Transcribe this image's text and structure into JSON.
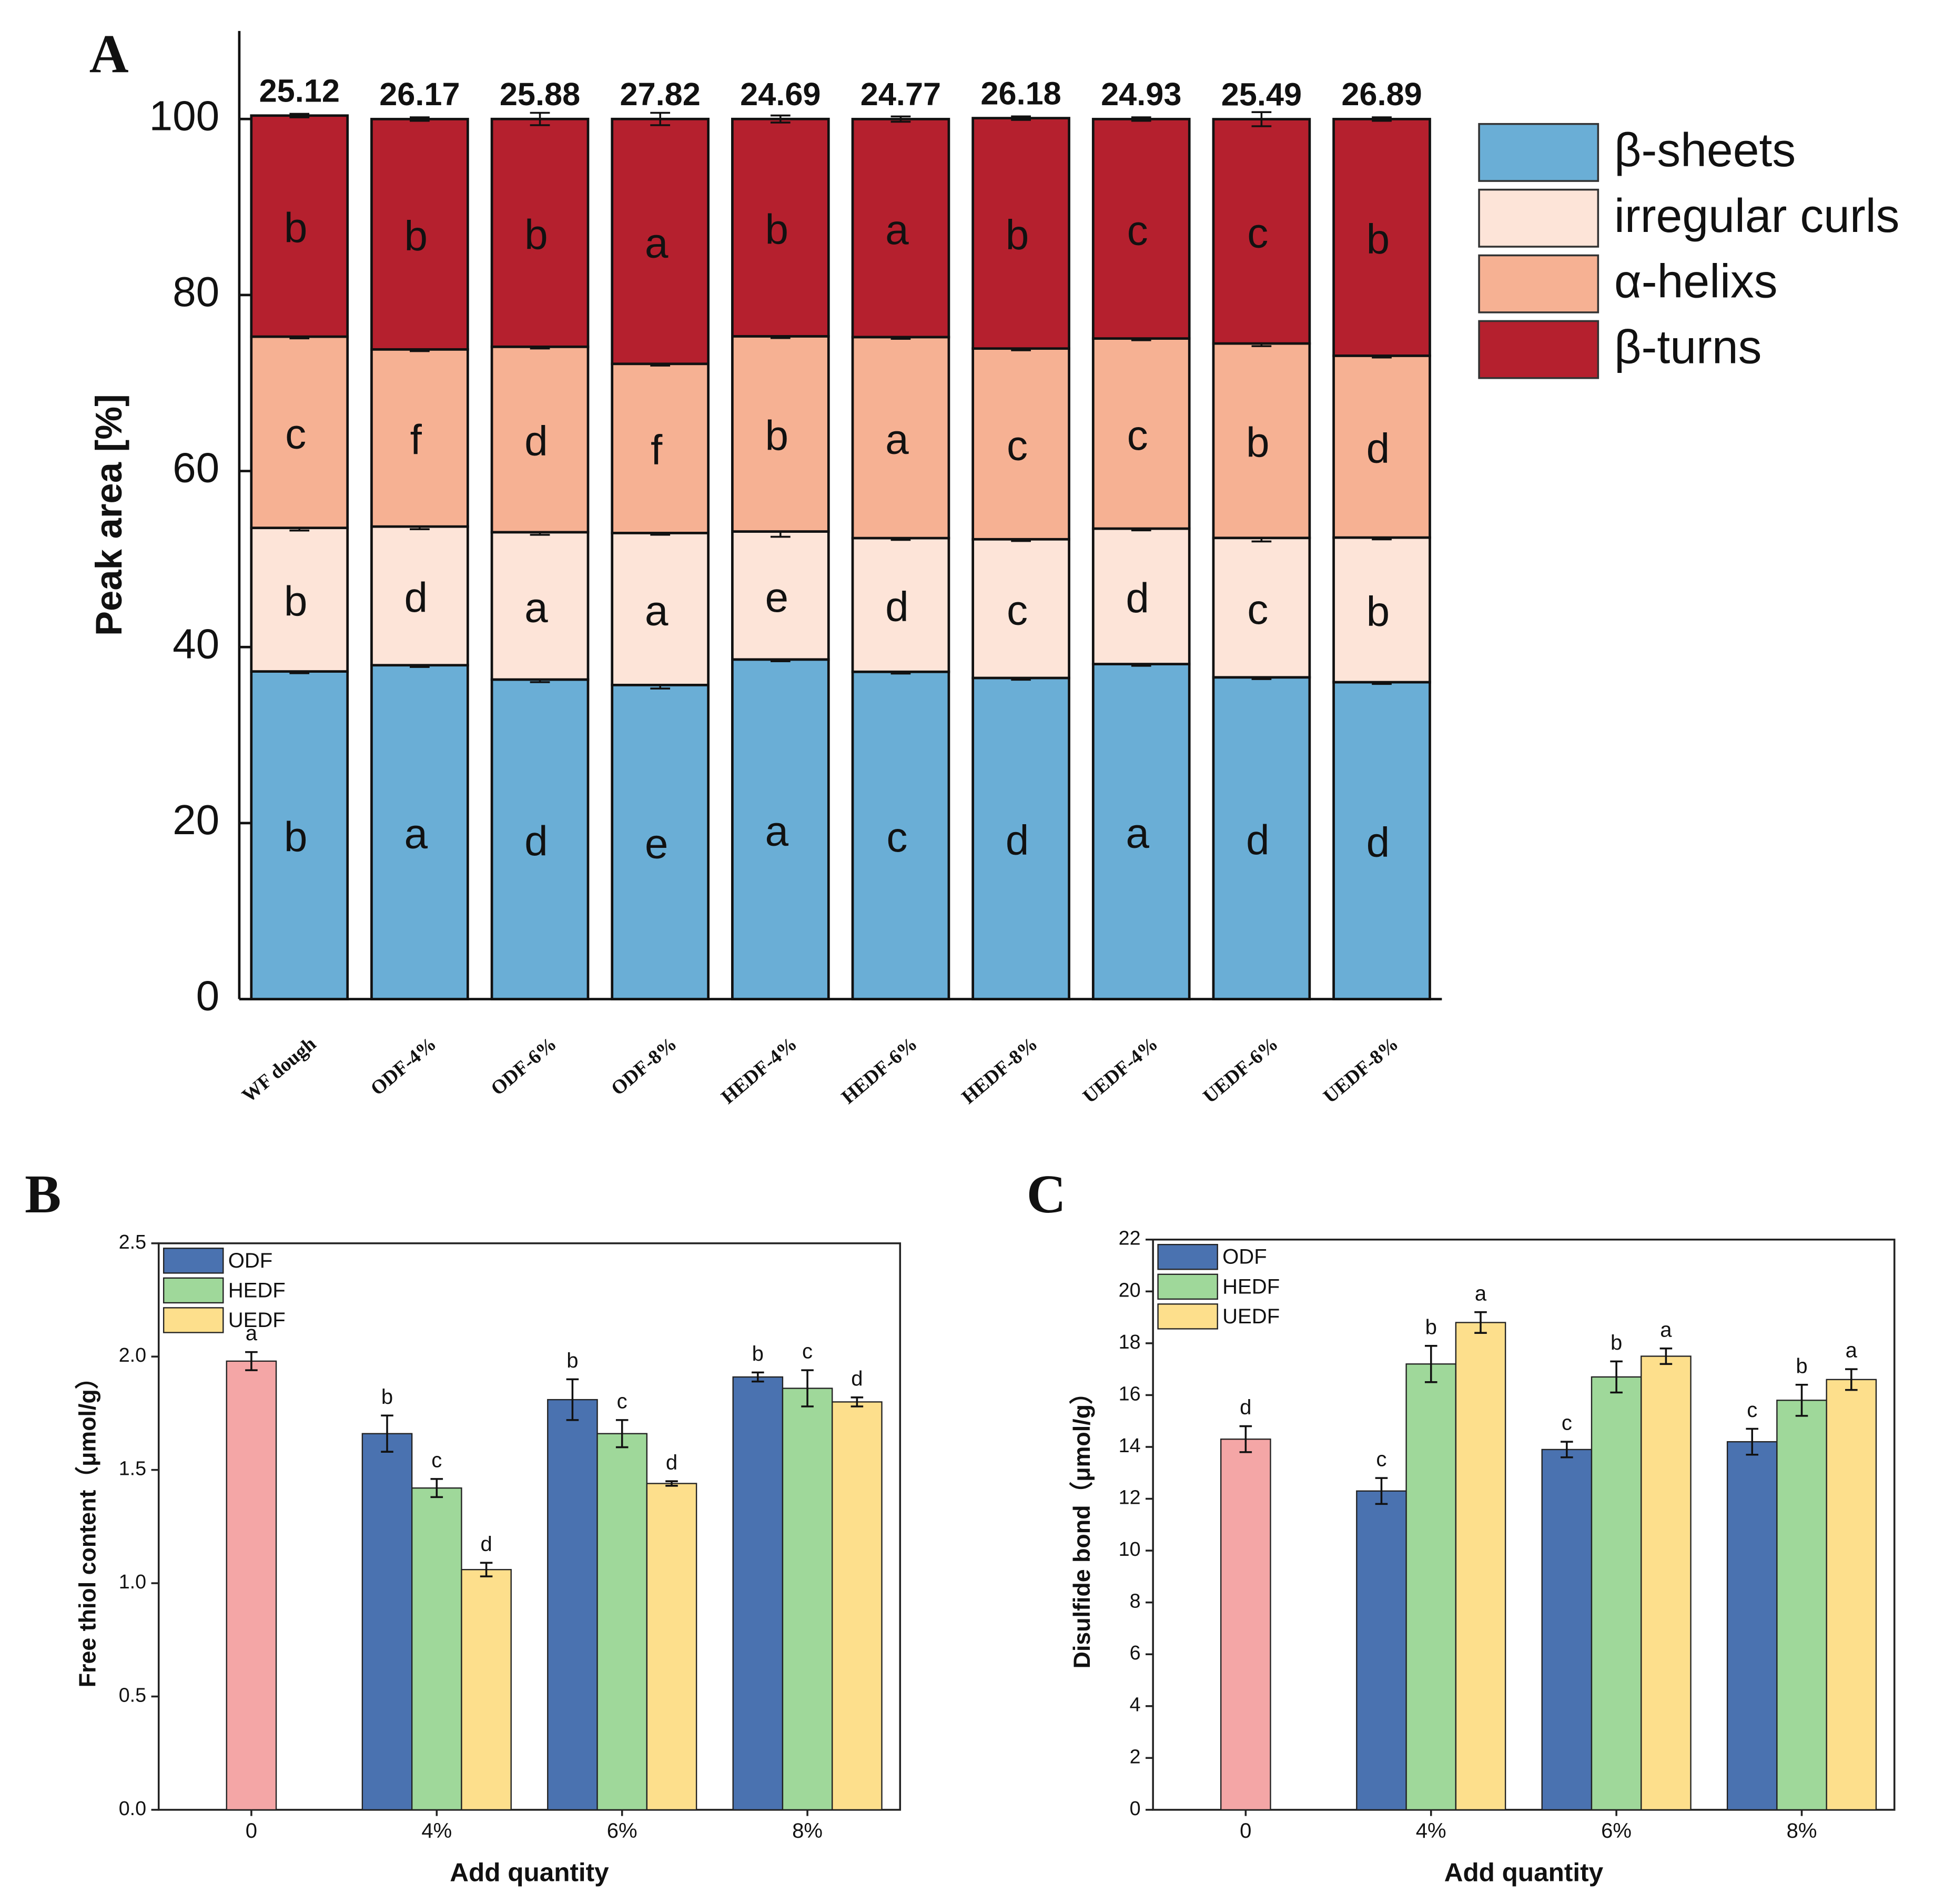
{
  "chart_data": [
    {
      "type": "stacked_bar",
      "panel": "A",
      "y_label": "Peak area [%]",
      "legend": "right",
      "xtick_rotation": -40,
      "categories": [
        "WF dough",
        "ODF-4%",
        "ODF-6%",
        "ODF-8%",
        "HEDF-4%",
        "HEDF-6%",
        "HEDF-8%",
        "UEDF-4%",
        "UEDF-6%",
        "UEDF-8%"
      ],
      "ylim": [
        0,
        110
      ],
      "yticks": [
        0,
        20,
        40,
        60,
        80,
        100
      ],
      "series": [
        {
          "name": "β-sheets",
          "color": "#6aaed6",
          "values": [
            37.23,
            37.94,
            36.31,
            35.69,
            38.59,
            37.19,
            36.49,
            38.07,
            36.56,
            36.01
          ],
          "errors": [
            0.2,
            0.2,
            0.3,
            0.4,
            0.2,
            0.2,
            0.2,
            0.2,
            0.2,
            0.2
          ],
          "letters": [
            "b",
            "a",
            "d",
            "e",
            "a",
            "c",
            "d",
            "a",
            "d",
            "d"
          ]
        },
        {
          "name": "irregular curls",
          "color": "#fde4d8",
          "values": [
            16.31,
            15.75,
            16.74,
            17.27,
            14.54,
            15.19,
            15.76,
            15.39,
            15.84,
            16.43
          ],
          "errors": [
            0.3,
            0.3,
            0.3,
            0.2,
            0.6,
            0.2,
            0.2,
            0.2,
            0.4,
            0.2
          ],
          "letters": [
            "b",
            "d",
            "a",
            "a",
            "e",
            "d",
            "c",
            "d",
            "c",
            "b"
          ]
        },
        {
          "name": "α-helixs",
          "color": "#f6b193",
          "values": [
            21.73,
            20.13,
            21.07,
            19.22,
            22.18,
            22.84,
            21.67,
            21.6,
            22.09,
            20.66
          ],
          "errors": [
            0.2,
            0.2,
            0.2,
            0.2,
            0.2,
            0.2,
            0.2,
            0.2,
            0.3,
            0.2
          ],
          "letters": [
            "c",
            "f",
            "d",
            "f",
            "b",
            "a",
            "c",
            "c",
            "b",
            "d"
          ]
        },
        {
          "name": "β-turns",
          "color": "#b5202e",
          "values": [
            25.12,
            26.17,
            25.88,
            27.82,
            24.69,
            24.77,
            26.18,
            24.93,
            25.49,
            26.89
          ],
          "errors": [
            0.2,
            0.2,
            0.7,
            0.7,
            0.4,
            0.3,
            0.2,
            0.2,
            0.8,
            0.2
          ],
          "letters": [
            "b",
            "b",
            "b",
            "a",
            "b",
            "a",
            "b",
            "c",
            "c",
            "b"
          ]
        }
      ]
    },
    {
      "type": "bar",
      "panel": "B",
      "x_label": "Add quantity",
      "y_label": "Free thiol content（μmol/g）",
      "legend": "upper left",
      "categories": [
        "0",
        "4%",
        "6%",
        "8%"
      ],
      "ylim": [
        0,
        2.5
      ],
      "yticks": [
        {
          "value": 0,
          "label": "0.0"
        },
        0.5,
        {
          "value": 1,
          "label": "1.0"
        },
        1.5,
        {
          "value": 2,
          "label": "2.0"
        },
        2.5
      ],
      "series": [
        {
          "color": "#f4a6a6",
          "values": [
            1.98,
            null,
            null,
            null
          ],
          "errors": [
            0.04,
            null,
            null,
            null
          ],
          "letters": [
            "a",
            null,
            null,
            null
          ]
        },
        {
          "name": "ODF",
          "color": "#4a72b0",
          "values": [
            null,
            1.66,
            1.81,
            1.91
          ],
          "errors": [
            null,
            0.08,
            0.09,
            0.02
          ],
          "letters": [
            null,
            "b",
            "b",
            "b"
          ]
        },
        {
          "name": "HEDF",
          "color": "#9fd89a",
          "values": [
            null,
            1.42,
            1.66,
            1.86
          ],
          "errors": [
            null,
            0.04,
            0.06,
            0.08
          ],
          "letters": [
            null,
            "c",
            "c",
            "c"
          ]
        },
        {
          "name": "UEDF",
          "color": "#fddf8c",
          "values": [
            null,
            1.06,
            1.44,
            1.8
          ],
          "errors": [
            null,
            0.03,
            0.01,
            0.02
          ],
          "letters": [
            null,
            "d",
            "d",
            "d"
          ]
        }
      ]
    },
    {
      "type": "bar",
      "panel": "C",
      "x_label": "Add quantity",
      "y_label": "Disulfide bond（μmol/g）",
      "legend": "upper left",
      "categories": [
        "0",
        "4%",
        "6%",
        "8%"
      ],
      "ylim": [
        0,
        22
      ],
      "yticks": [
        0,
        2,
        4,
        6,
        8,
        10,
        12,
        14,
        16,
        18,
        20,
        22
      ],
      "series": [
        {
          "color": "#f4a6a6",
          "values": [
            14.3,
            null,
            null,
            null
          ],
          "errors": [
            0.5,
            null,
            null,
            null
          ],
          "letters": [
            "d",
            null,
            null,
            null
          ]
        },
        {
          "name": "ODF",
          "color": "#4a72b0",
          "values": [
            null,
            12.3,
            13.9,
            14.2
          ],
          "errors": [
            null,
            0.5,
            0.3,
            0.5
          ],
          "letters": [
            null,
            "c",
            "c",
            "c"
          ]
        },
        {
          "name": "HEDF",
          "color": "#9fd89a",
          "values": [
            null,
            17.2,
            16.7,
            15.8
          ],
          "errors": [
            null,
            0.7,
            0.6,
            0.6
          ],
          "letters": [
            null,
            "b",
            "b",
            "b"
          ]
        },
        {
          "name": "UEDF",
          "color": "#fddf8c",
          "values": [
            null,
            18.8,
            17.5,
            16.6
          ],
          "errors": [
            null,
            0.4,
            0.3,
            0.4
          ],
          "letters": [
            null,
            "a",
            "a",
            "a"
          ]
        }
      ]
    }
  ]
}
